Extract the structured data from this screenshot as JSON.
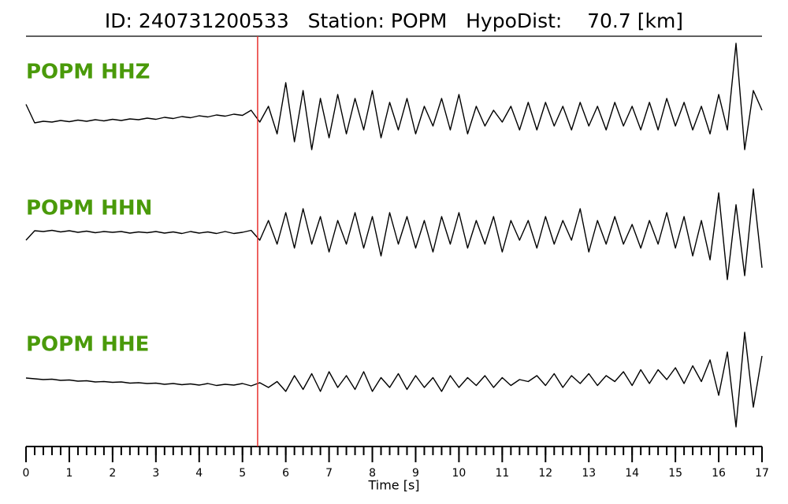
{
  "chart_data": {
    "type": "line",
    "title": "ID: 240731200533   Station: POPM   HypoDist:    70.7 [km]",
    "x_label": "Time [s]",
    "xlim": [
      0,
      17
    ],
    "xticks": [
      0,
      1,
      2,
      3,
      4,
      5,
      6,
      7,
      8,
      9,
      10,
      11,
      12,
      13,
      14,
      15,
      16,
      17
    ],
    "ylim": [
      -1,
      1
    ],
    "pick_time": 5.35,
    "pick_color": "#e8312f",
    "label_color": "#4a9a0a",
    "x": [
      0,
      0.2,
      0.4,
      0.6,
      0.8,
      1,
      1.2,
      1.4,
      1.6,
      1.8,
      2,
      2.2,
      2.4,
      2.6,
      2.8,
      3,
      3.2,
      3.4,
      3.6,
      3.8,
      4,
      4.2,
      4.4,
      4.6,
      4.8,
      5,
      5.2,
      5.4,
      5.6,
      5.8,
      6,
      6.2,
      6.4,
      6.6,
      6.8,
      7,
      7.2,
      7.4,
      7.6,
      7.8,
      8,
      8.2,
      8.4,
      8.6,
      8.8,
      9,
      9.2,
      9.4,
      9.6,
      9.8,
      10,
      10.2,
      10.4,
      10.6,
      10.8,
      11,
      11.2,
      11.4,
      11.6,
      11.8,
      12,
      12.2,
      12.4,
      12.6,
      12.8,
      13,
      13.2,
      13.4,
      13.6,
      13.8,
      14,
      14.2,
      14.4,
      14.6,
      14.8,
      15,
      15.2,
      15.4,
      15.6,
      15.8,
      16,
      16.2,
      16.4,
      16.6,
      16.8,
      17
    ],
    "series": [
      {
        "name": "POPM HHZ",
        "color": "#000000",
        "values": [
          0.35,
          -0.12,
          -0.08,
          -0.1,
          -0.06,
          -0.09,
          -0.05,
          -0.08,
          -0.04,
          -0.07,
          -0.03,
          -0.06,
          -0.02,
          -0.04,
          0.0,
          -0.03,
          0.02,
          -0.01,
          0.04,
          0.01,
          0.06,
          0.03,
          0.08,
          0.05,
          0.1,
          0.07,
          0.2,
          -0.1,
          0.3,
          -0.4,
          0.9,
          -0.6,
          0.7,
          -0.8,
          0.5,
          -0.5,
          0.6,
          -0.4,
          0.5,
          -0.3,
          0.7,
          -0.5,
          0.4,
          -0.3,
          0.5,
          -0.4,
          0.3,
          -0.2,
          0.5,
          -0.3,
          0.6,
          -0.4,
          0.3,
          -0.2,
          0.2,
          -0.1,
          0.3,
          -0.3,
          0.4,
          -0.3,
          0.4,
          -0.2,
          0.3,
          -0.3,
          0.4,
          -0.2,
          0.3,
          -0.3,
          0.4,
          -0.2,
          0.3,
          -0.3,
          0.4,
          -0.3,
          0.5,
          -0.2,
          0.4,
          -0.3,
          0.3,
          -0.4,
          0.6,
          -0.3,
          1.9,
          -0.8,
          0.7,
          0.2
        ]
      },
      {
        "name": "POPM HHN",
        "color": "#000000",
        "values": [
          -0.2,
          0.04,
          0.02,
          0.05,
          0.01,
          0.04,
          0.0,
          0.03,
          -0.01,
          0.02,
          0.0,
          0.02,
          -0.02,
          0.01,
          -0.01,
          0.02,
          -0.02,
          0.01,
          -0.03,
          0.02,
          -0.02,
          0.01,
          -0.03,
          0.02,
          -0.03,
          0.0,
          0.05,
          -0.2,
          0.3,
          -0.3,
          0.5,
          -0.4,
          0.6,
          -0.3,
          0.4,
          -0.5,
          0.3,
          -0.3,
          0.5,
          -0.4,
          0.4,
          -0.6,
          0.5,
          -0.3,
          0.4,
          -0.4,
          0.3,
          -0.5,
          0.4,
          -0.3,
          0.5,
          -0.4,
          0.3,
          -0.3,
          0.4,
          -0.5,
          0.3,
          -0.2,
          0.3,
          -0.4,
          0.4,
          -0.3,
          0.3,
          -0.2,
          0.6,
          -0.5,
          0.3,
          -0.3,
          0.4,
          -0.3,
          0.2,
          -0.4,
          0.3,
          -0.3,
          0.5,
          -0.4,
          0.4,
          -0.6,
          0.3,
          -0.7,
          1.0,
          -1.2,
          0.7,
          -1.1,
          1.1,
          -0.9
        ]
      },
      {
        "name": "POPM HHE",
        "color": "#000000",
        "values": [
          0.14,
          0.12,
          0.1,
          0.11,
          0.08,
          0.09,
          0.06,
          0.07,
          0.04,
          0.05,
          0.03,
          0.04,
          0.01,
          0.02,
          0.0,
          0.01,
          -0.02,
          0.0,
          -0.03,
          -0.01,
          -0.04,
          0.0,
          -0.05,
          -0.02,
          -0.04,
          0.0,
          -0.06,
          0.02,
          -0.1,
          0.05,
          -0.2,
          0.2,
          -0.15,
          0.25,
          -0.2,
          0.3,
          -0.1,
          0.2,
          -0.15,
          0.3,
          -0.2,
          0.15,
          -0.1,
          0.25,
          -0.15,
          0.2,
          -0.1,
          0.15,
          -0.2,
          0.2,
          -0.1,
          0.15,
          -0.05,
          0.2,
          -0.1,
          0.15,
          -0.05,
          0.1,
          0.05,
          0.2,
          -0.05,
          0.25,
          -0.1,
          0.2,
          0.0,
          0.25,
          -0.05,
          0.2,
          0.05,
          0.3,
          -0.05,
          0.35,
          0.0,
          0.35,
          0.1,
          0.4,
          0.0,
          0.45,
          0.05,
          0.6,
          -0.3,
          0.8,
          -1.1,
          1.3,
          -0.6,
          0.7
        ]
      }
    ]
  }
}
